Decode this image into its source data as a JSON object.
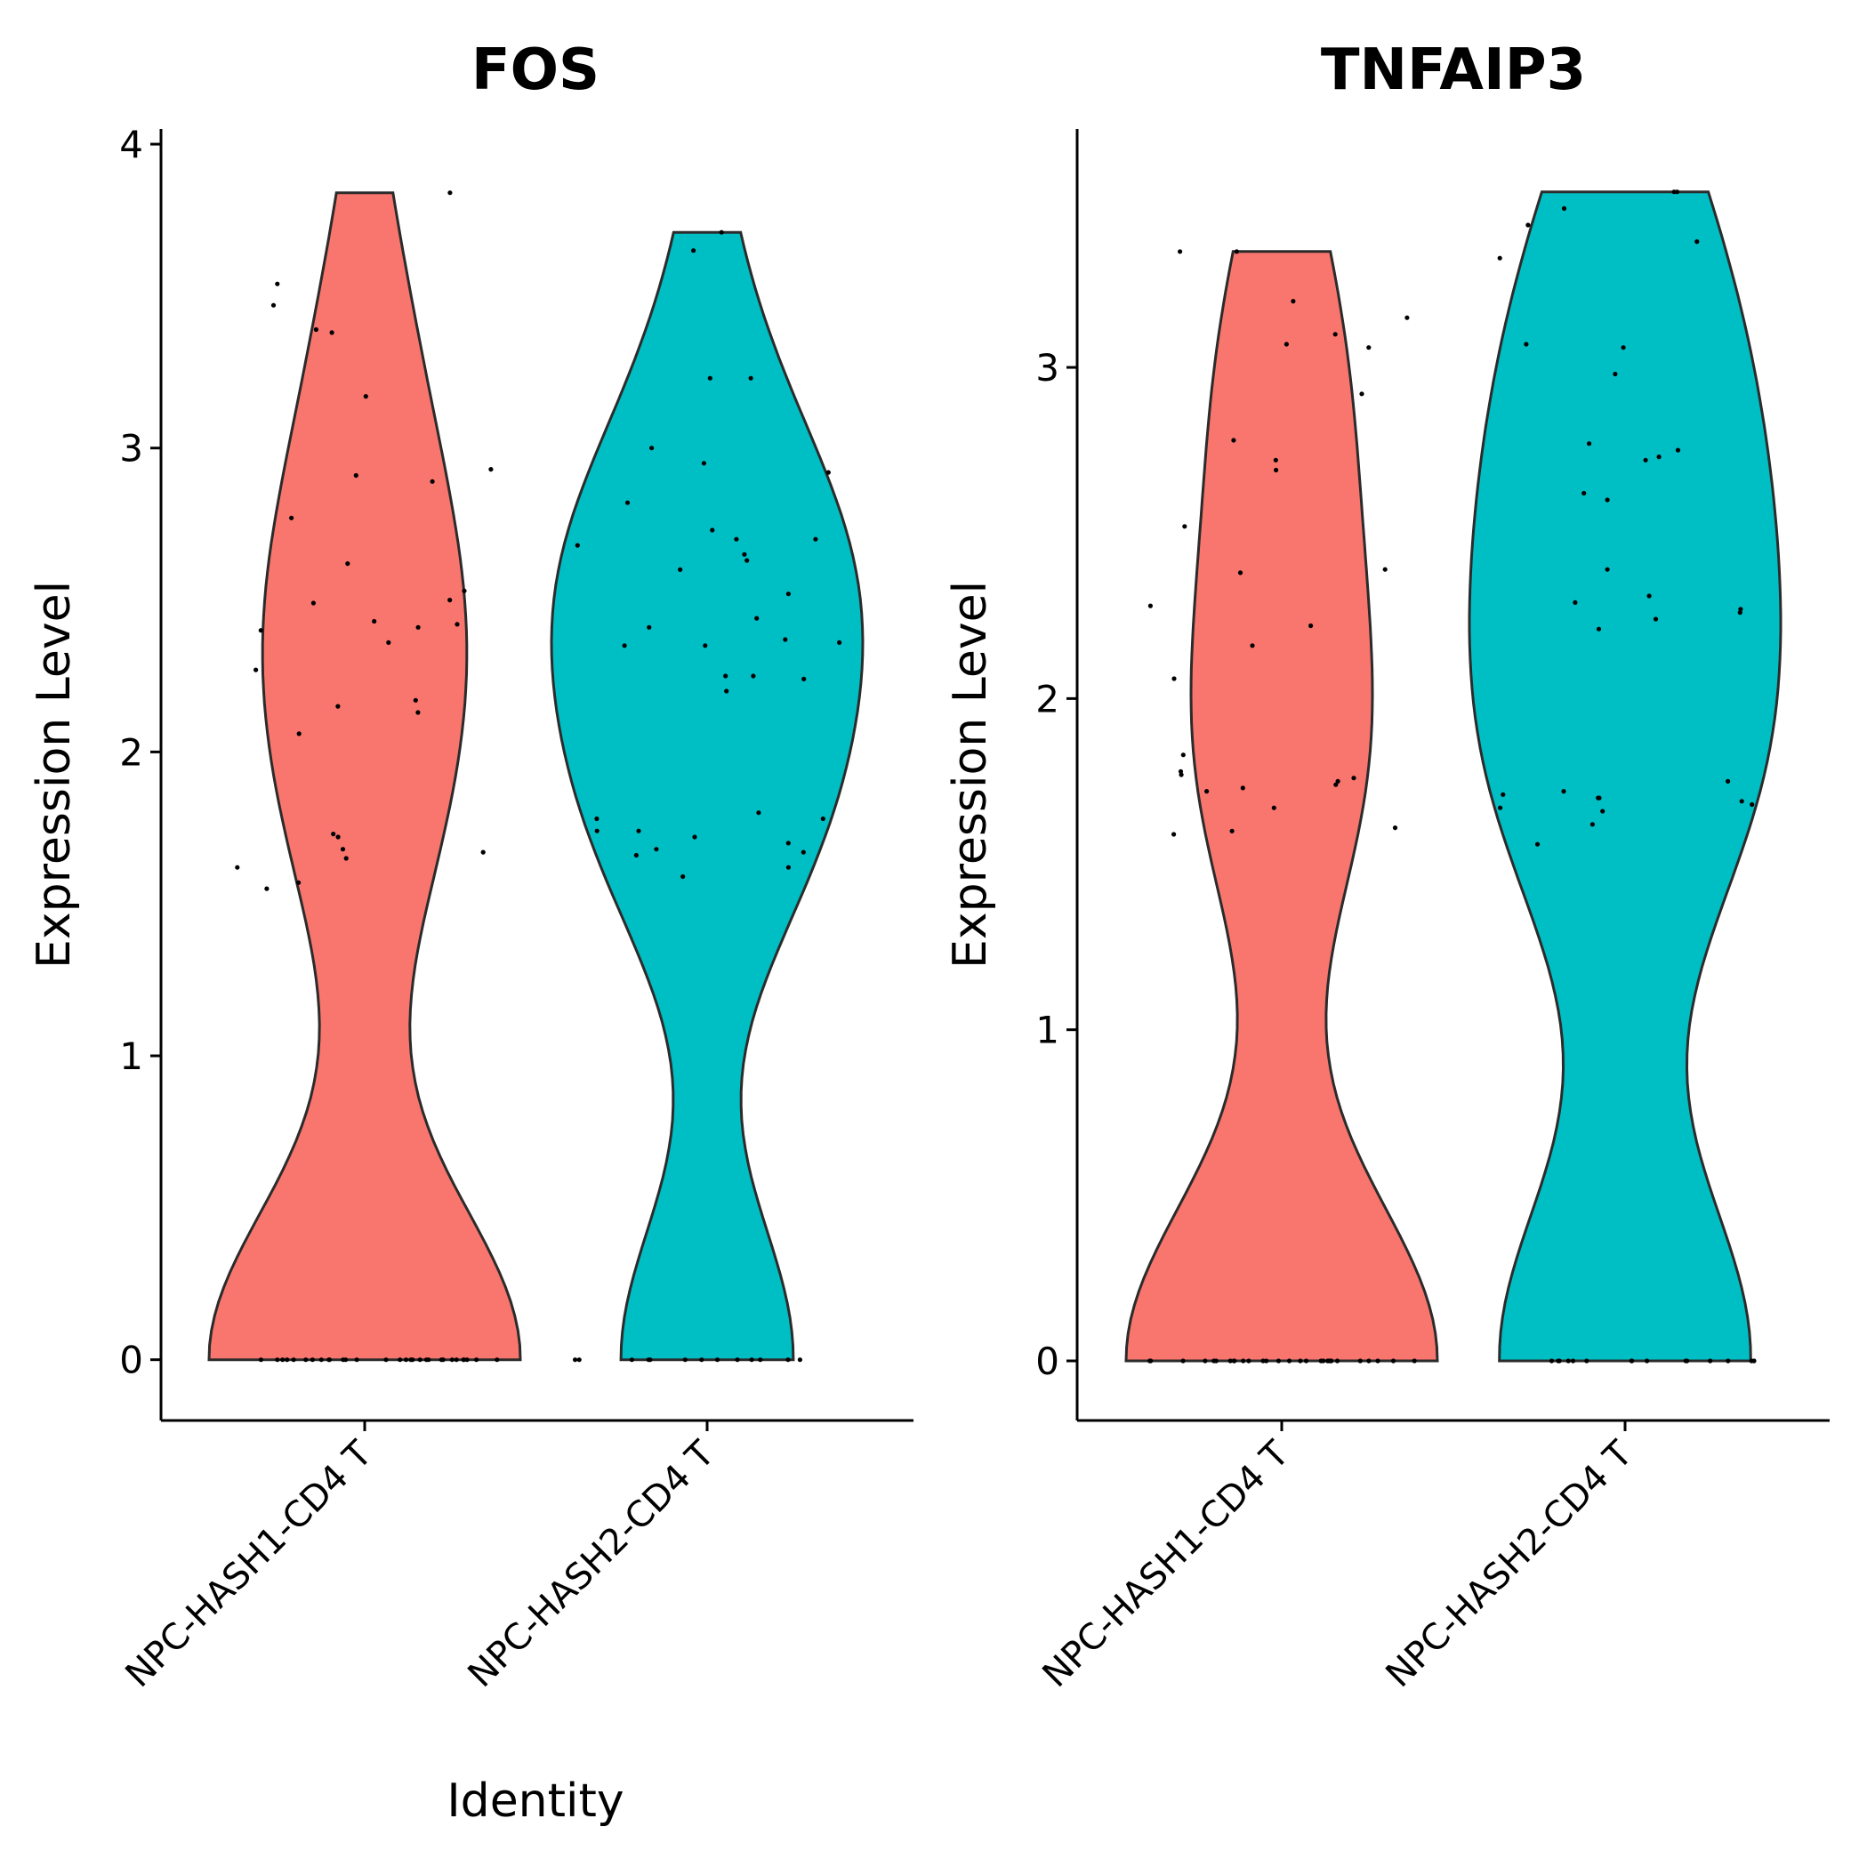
{
  "x_axis_title": "Identity",
  "colors": {
    "NPC-HASH1-CD4 T": "#F8766D",
    "NPC-HASH2-CD4 T": "#00BFC4"
  },
  "chart_data": [
    {
      "type": "violin",
      "title": "FOS",
      "ylabel": "Expression Level",
      "xlabel": "Identity",
      "ylim": [
        -0.2,
        4.05
      ],
      "yticks": [
        0,
        1,
        2,
        3,
        4
      ],
      "categories": [
        "NPC-HASH1-CD4 T",
        "NPC-HASH2-CD4 T"
      ],
      "series": [
        {
          "category": "NPC-HASH1-CD4 T",
          "max": 3.84,
          "values": [
            0,
            0,
            0,
            0,
            0,
            0,
            0,
            0,
            0,
            0,
            0,
            0,
            0,
            0,
            0,
            0,
            0,
            0,
            0,
            0,
            0,
            0,
            0,
            0,
            0,
            0,
            0,
            0,
            0,
            0,
            3.84,
            3.54,
            3.47,
            3.39,
            3.38,
            3.17,
            2.93,
            2.91,
            2.89,
            2.77,
            2.62,
            2.53,
            2.5,
            2.49,
            2.43,
            2.42,
            2.41,
            2.4,
            2.36,
            2.27,
            2.17,
            2.15,
            2.13,
            2.06,
            1.73,
            1.72,
            1.68,
            1.67,
            1.65,
            1.62,
            1.57,
            1.55
          ]
        },
        {
          "category": "NPC-HASH2-CD4 T",
          "max": 3.71,
          "values": [
            0,
            0,
            0,
            0,
            0,
            0,
            0,
            0,
            0,
            0,
            0,
            0,
            0,
            3.71,
            3.65,
            3.23,
            3.23,
            3.0,
            2.95,
            2.92,
            2.82,
            2.73,
            2.7,
            2.7,
            2.68,
            2.65,
            2.63,
            2.6,
            2.52,
            2.44,
            2.41,
            2.37,
            2.36,
            2.35,
            2.35,
            2.25,
            2.25,
            2.24,
            2.2,
            1.8,
            1.78,
            1.78,
            1.74,
            1.74,
            1.72,
            1.7,
            1.68,
            1.67,
            1.66,
            1.62,
            1.59
          ]
        }
      ]
    },
    {
      "type": "violin",
      "title": "TNFAIP3",
      "ylabel": "Expression Level",
      "xlabel": "",
      "ylim": [
        -0.18,
        3.72
      ],
      "yticks": [
        0,
        1,
        2,
        3
      ],
      "categories": [
        "NPC-HASH1-CD4 T",
        "NPC-HASH2-CD4 T"
      ],
      "series": [
        {
          "category": "NPC-HASH1-CD4 T",
          "max": 3.35,
          "values": [
            0,
            0,
            0,
            0,
            0,
            0,
            0,
            0,
            0,
            0,
            0,
            0,
            0,
            0,
            0,
            0,
            0,
            0,
            0,
            0,
            0,
            0,
            0,
            0,
            0,
            0,
            0,
            0,
            0,
            0,
            3.35,
            3.35,
            3.2,
            3.15,
            3.1,
            3.07,
            3.06,
            2.92,
            2.78,
            2.72,
            2.69,
            2.52,
            2.39,
            2.38,
            2.28,
            2.22,
            2.16,
            2.06,
            1.83,
            1.78,
            1.77,
            1.76,
            1.75,
            1.74,
            1.73,
            1.72,
            1.67,
            1.61,
            1.6,
            1.59
          ]
        },
        {
          "category": "NPC-HASH2-CD4 T",
          "max": 3.53,
          "values": [
            0,
            0,
            0,
            0,
            0,
            0,
            0,
            0,
            0,
            0,
            0,
            0,
            0,
            0,
            0,
            3.53,
            3.53,
            3.48,
            3.43,
            3.38,
            3.33,
            3.07,
            3.06,
            2.98,
            2.77,
            2.75,
            2.73,
            2.72,
            2.62,
            2.6,
            2.39,
            2.31,
            2.29,
            2.27,
            2.26,
            2.24,
            2.21,
            1.75,
            1.72,
            1.71,
            1.7,
            1.7,
            1.69,
            1.68,
            1.67,
            1.66,
            1.62,
            1.56
          ]
        }
      ]
    }
  ]
}
